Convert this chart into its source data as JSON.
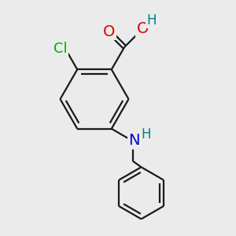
{
  "bg_color": "#ebebeb",
  "bond_color": "#1a1a1a",
  "bond_width": 1.6,
  "atom_colors": {
    "O": "#e00000",
    "N": "#0000cc",
    "Cl": "#00aa00",
    "H_teal": "#008080",
    "C": "#1a1a1a"
  },
  "font_size_atom": 13,
  "font_size_H": 11
}
